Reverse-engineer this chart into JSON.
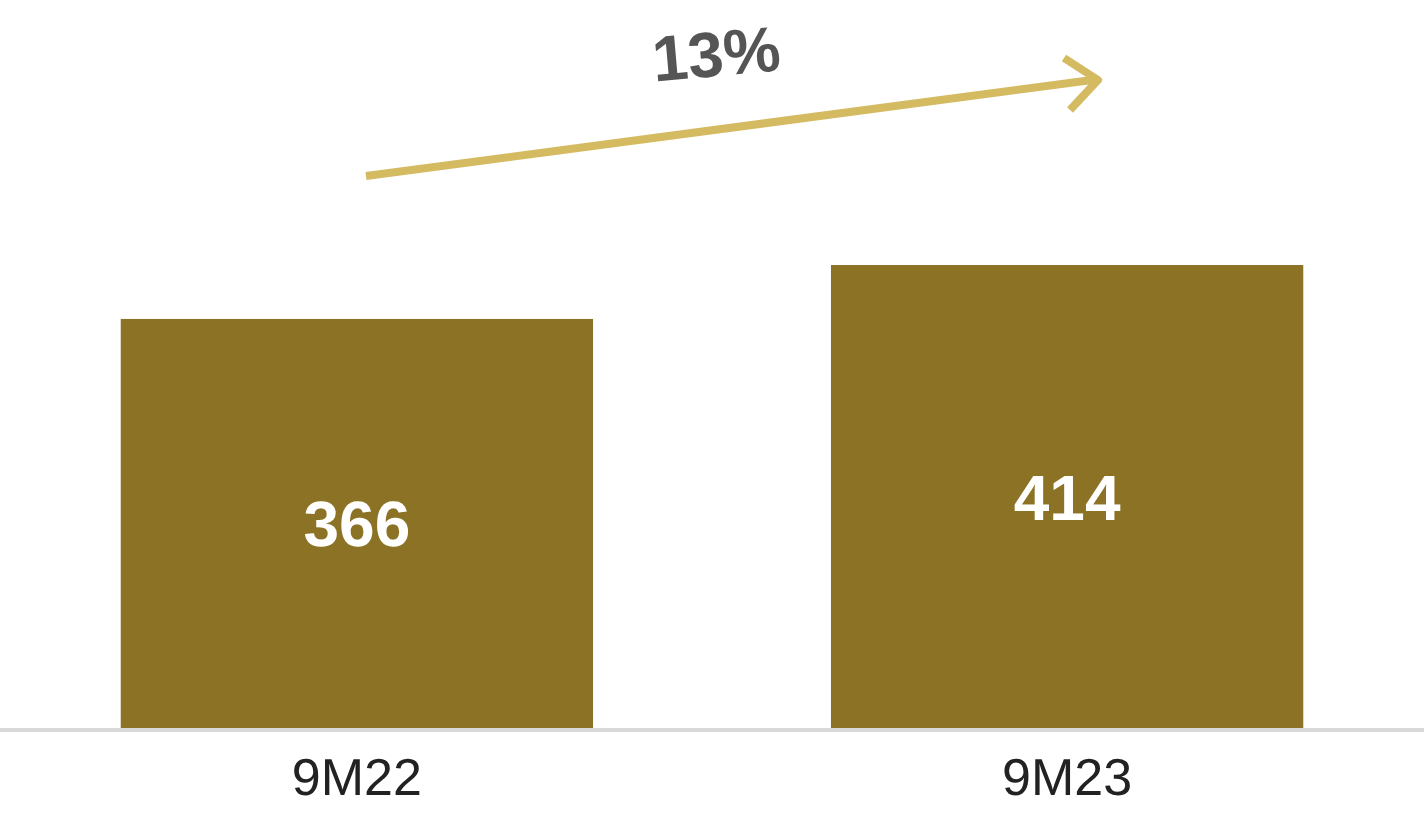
{
  "chart_data": {
    "type": "bar",
    "categories": [
      "9M22",
      "9M23"
    ],
    "values": [
      366,
      414
    ],
    "color": "#8b7225",
    "data_labels": true,
    "annotations": [
      "13%"
    ]
  }
}
